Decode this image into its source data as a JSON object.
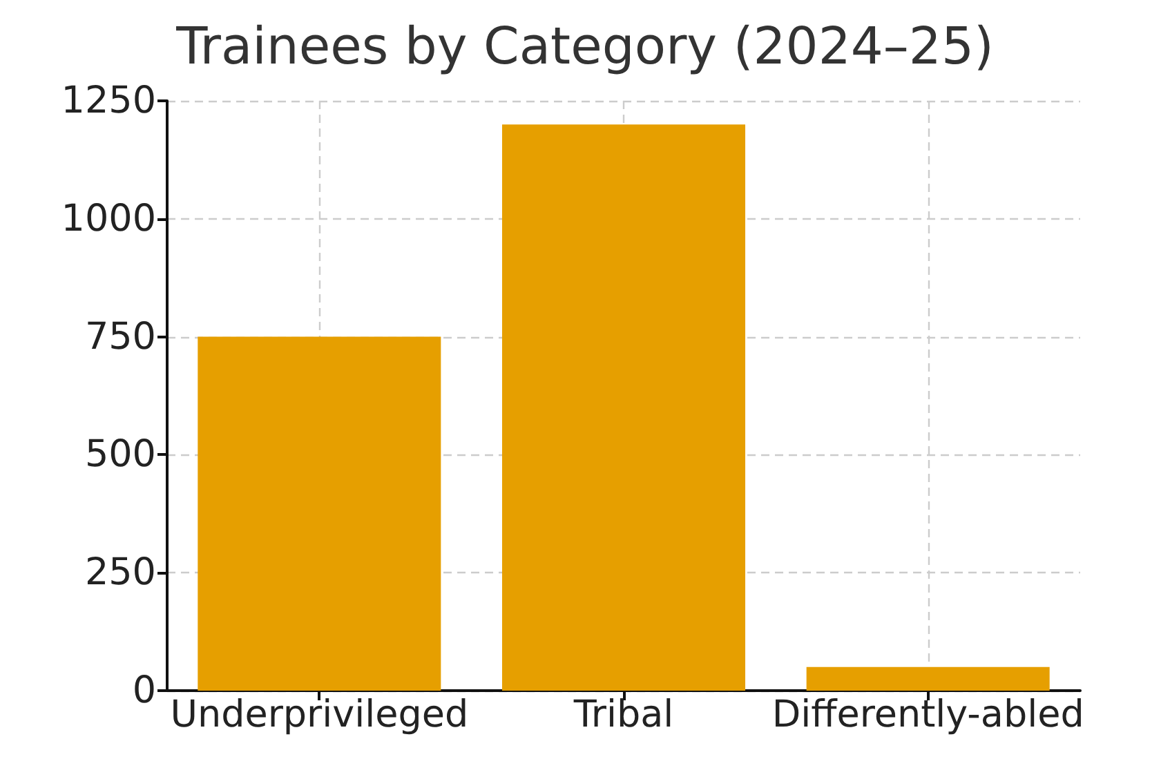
{
  "chart_data": {
    "type": "bar",
    "title": "Trainees by Category (2024–25)",
    "categories": [
      "Underprivileged",
      "Tribal",
      "Differently-abled"
    ],
    "values": [
      750,
      1200,
      50
    ],
    "color": "#e69f00",
    "ylim": [
      0,
      1250
    ],
    "yticks": [
      0,
      250,
      500,
      750,
      1000,
      1250
    ],
    "grid": true
  }
}
